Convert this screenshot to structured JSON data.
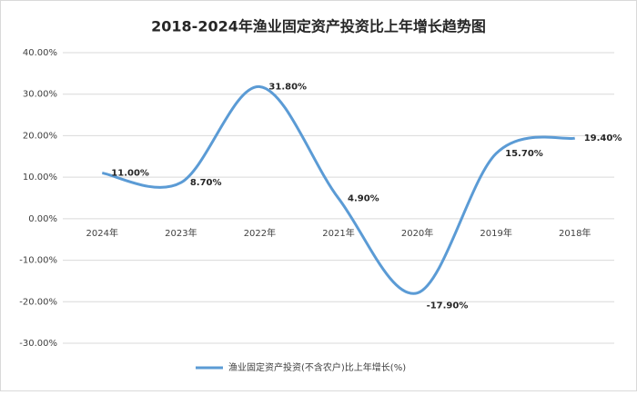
{
  "chart_data": {
    "type": "line",
    "title": "2018-2024年渔业固定资产投资比上年增长趋势图",
    "categories": [
      "2024年",
      "2023年",
      "2022年",
      "2021年",
      "2020年",
      "2019年",
      "2018年"
    ],
    "series": [
      {
        "name": "渔业固定资产投资(不含农户)比上年增长(%)",
        "color": "#5b9bd5",
        "values": [
          11.0,
          8.7,
          31.8,
          4.9,
          -17.9,
          15.7,
          19.4
        ],
        "value_labels": [
          "11.00%",
          "8.70%",
          "31.80%",
          "4.90%",
          "-17.90%",
          "15.70%",
          "19.40%"
        ]
      }
    ],
    "ylim": [
      -30,
      40
    ],
    "yticks": [
      {
        "value": -30,
        "label": "-30.00%"
      },
      {
        "value": -20,
        "label": "-20.00%"
      },
      {
        "value": -10,
        "label": "-10.00%"
      },
      {
        "value": 0,
        "label": "0.00%"
      },
      {
        "value": 10,
        "label": "10.00%"
      },
      {
        "value": 20,
        "label": "20.00%"
      },
      {
        "value": 30,
        "label": "30.00%"
      },
      {
        "value": 40,
        "label": "40.00%"
      }
    ],
    "grid": true,
    "legend": "bottom",
    "smooth": true
  }
}
